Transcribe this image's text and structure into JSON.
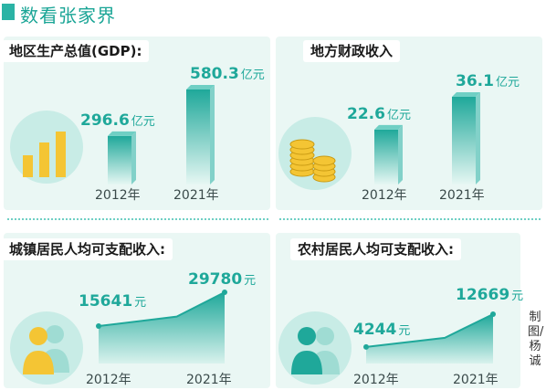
{
  "header": {
    "title": "数看张家界",
    "accent": "#2bb3a5"
  },
  "credit": {
    "text": "制图/杨诚"
  },
  "icons": [
    "bar-chart-icon",
    "coins-icon",
    "two-people-icon"
  ],
  "colors": {
    "bar_top": "#1fa89a",
    "bar_bottom": "#e6f7f3",
    "coin": "#f4c534",
    "panel_bg": "#eaf7f4"
  },
  "chart_data": [
    {
      "type": "bar",
      "title": "地区生产总值(GDP):",
      "categories": [
        "2012年",
        "2021年"
      ],
      "values": [
        296.6,
        580.3
      ],
      "value_labels": [
        "296.6",
        "580.3"
      ],
      "unit": "亿元"
    },
    {
      "type": "bar",
      "title": "地方财政收入",
      "categories": [
        "2012年",
        "2021年"
      ],
      "values": [
        22.6,
        36.1
      ],
      "value_labels": [
        "22.6",
        "36.1"
      ],
      "unit": "亿元"
    },
    {
      "type": "area",
      "title": "城镇居民人均可支配收入:",
      "categories": [
        "2012年",
        "2021年"
      ],
      "values": [
        15641,
        29780
      ],
      "value_labels": [
        "15641",
        "29780"
      ],
      "unit": "元"
    },
    {
      "type": "area",
      "title": "农村居民人均可支配收入:",
      "categories": [
        "2012年",
        "2021年"
      ],
      "values": [
        4244,
        12669
      ],
      "value_labels": [
        "4244",
        "12669"
      ],
      "unit": "元"
    }
  ]
}
